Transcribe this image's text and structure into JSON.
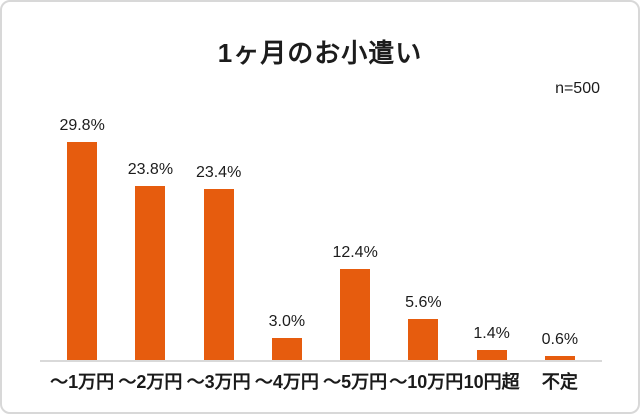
{
  "window": {
    "background": "#ffffff",
    "border_color": "#d8d8d8"
  },
  "header": {
    "title": "1ヶ月のお小遣い",
    "sample_size_label": "n=500"
  },
  "chart_data": {
    "type": "bar",
    "title": "1ヶ月のお小遣い",
    "sample_size": "n=500",
    "categories": [
      "～1万円",
      "～2万円",
      "～3万円",
      "～4万円",
      "～5万円",
      "～10万円",
      "10円超",
      "不定"
    ],
    "values": [
      29.8,
      23.8,
      23.4,
      3.0,
      12.4,
      5.6,
      1.4,
      0.6
    ],
    "value_labels": [
      "29.8%",
      "23.8%",
      "23.4%",
      "3.0%",
      "12.4%",
      "5.6%",
      "1.4%",
      "0.6%"
    ],
    "unit": "%",
    "xlabel": "",
    "ylabel": "",
    "ylim": [
      0,
      30
    ],
    "grid": false,
    "legend": false,
    "bar_color": "#e65c0e",
    "axis_line_color": "#d9d9d9",
    "label_color": "#1c1c1c"
  }
}
